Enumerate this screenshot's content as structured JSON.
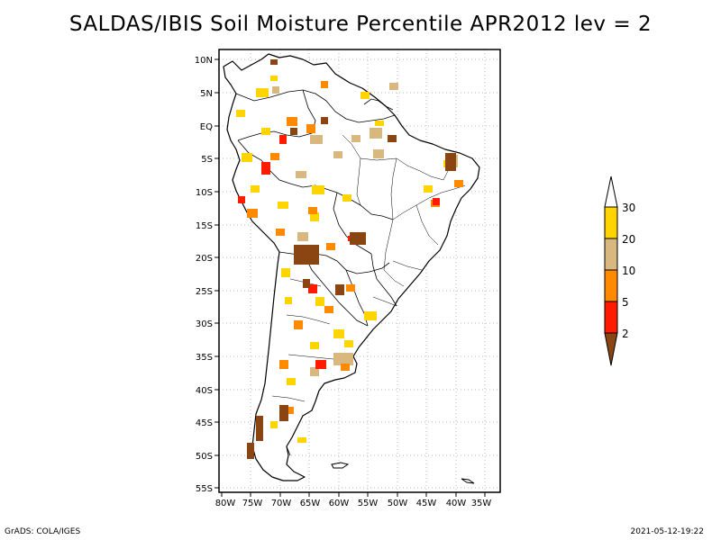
{
  "title": "SALDAS/IBIS Soil Moisture Percentile APR2012 lev = 2",
  "footer": {
    "left": "GrADS: COLA/IGES",
    "right": "2021-05-12-19:22"
  },
  "lat_labels": [
    "10N",
    "5N",
    "EQ",
    "5S",
    "10S",
    "15S",
    "20S",
    "25S",
    "30S",
    "35S",
    "40S",
    "45S",
    "50S",
    "55S"
  ],
  "lon_labels": [
    "80W",
    "75W",
    "70W",
    "65W",
    "60W",
    "55W",
    "50W",
    "45W",
    "40W",
    "35W"
  ],
  "colorbar": {
    "labels": [
      "30",
      "20",
      "10",
      "5",
      "2"
    ],
    "colors": {
      "above_30": "#ffffff",
      "20_30": "#ffd400",
      "10_20": "#d8b87e",
      "5_10": "#ff8a00",
      "2_5": "#ff1a00",
      "below_2": "#8b4513"
    }
  },
  "map": {
    "region": "South America",
    "lon_range": [
      -81,
      -33
    ],
    "lat_range": [
      -56,
      11
    ],
    "grid": "dotted"
  }
}
